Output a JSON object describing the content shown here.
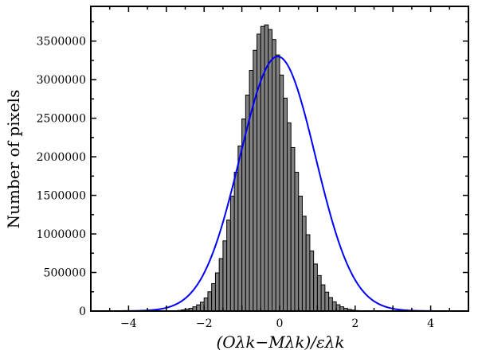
{
  "chart_data": {
    "type": "bar",
    "title": "",
    "xlabel": "(Oλk−Mλk)/ελk",
    "ylabel": "Number of pixels",
    "xlim": [
      -5,
      5
    ],
    "ylim": [
      0,
      3950000
    ],
    "x_ticks": [
      -4,
      -2,
      0,
      2,
      4
    ],
    "x_tick_labels": [
      "−4",
      "−2",
      "0",
      "2",
      "4"
    ],
    "y_ticks": [
      0,
      500000,
      1000000,
      1500000,
      2000000,
      2500000,
      3000000,
      3500000
    ],
    "y_tick_labels": [
      "0",
      "500000",
      "1000000",
      "1500000",
      "2000000",
      "2500000",
      "3000000",
      "3500000"
    ],
    "histogram": {
      "bin_width": 0.1,
      "bin_start": -4.5,
      "fill": "#808080",
      "edge": "#000000",
      "values": [
        0,
        0,
        0,
        0,
        0,
        0,
        0,
        0,
        0,
        0,
        0,
        0,
        0,
        0,
        0,
        0,
        2000,
        5000,
        9000,
        15000,
        25000,
        35000,
        55000,
        80000,
        115000,
        170000,
        250000,
        355000,
        495000,
        680000,
        910000,
        1180000,
        1490000,
        1800000,
        2140000,
        2490000,
        2800000,
        3120000,
        3380000,
        3590000,
        3690000,
        3710000,
        3650000,
        3520000,
        3320000,
        3060000,
        2760000,
        2440000,
        2120000,
        1800000,
        1490000,
        1230000,
        990000,
        780000,
        610000,
        460000,
        340000,
        245000,
        175000,
        120000,
        82000,
        55000,
        35000,
        22000,
        13000,
        7000,
        3000,
        1000,
        0,
        0,
        0,
        0,
        0,
        0,
        0,
        0,
        0,
        0,
        0,
        0,
        0,
        0,
        0,
        0,
        0,
        0,
        0,
        0,
        0,
        0,
        0
      ]
    },
    "series": [
      {
        "type": "gaussian",
        "color": "#0000ff",
        "amplitude": 3300000,
        "mean": -0.05,
        "sigma": 1.0
      }
    ]
  }
}
